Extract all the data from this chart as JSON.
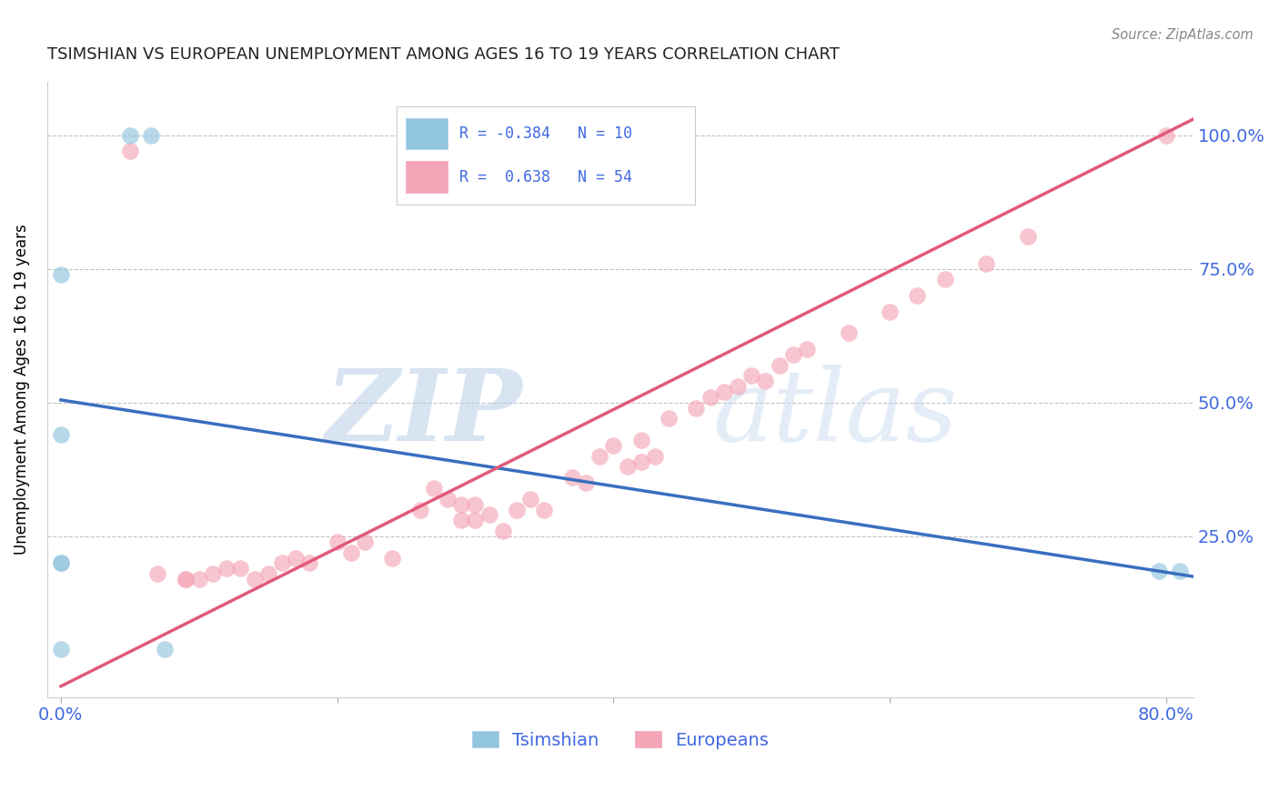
{
  "title": "TSIMSHIAN VS EUROPEAN UNEMPLOYMENT AMONG AGES 16 TO 19 YEARS CORRELATION CHART",
  "source": "Source: ZipAtlas.com",
  "xlabel_label": "Tsimshian",
  "ylabel": "Unemployment Among Ages 16 to 19 years",
  "xlim": [
    -0.01,
    0.82
  ],
  "ylim": [
    -0.05,
    1.1
  ],
  "xticks": [
    0.0,
    0.2,
    0.4,
    0.6,
    0.8
  ],
  "xticklabels": [
    "0.0%",
    "",
    "",
    "",
    "80.0%"
  ],
  "yticks": [
    0.0,
    0.25,
    0.5,
    0.75,
    1.0
  ],
  "yticklabels": [
    "",
    "25.0%",
    "50.0%",
    "75.0%",
    "100.0%"
  ],
  "grid_yticks": [
    0.25,
    0.5,
    0.75,
    1.0
  ],
  "blue_color": "#92C5DE",
  "pink_color": "#F4A6B8",
  "blue_line_color": "#3a6fbf",
  "pink_line_color": "#e05a7a",
  "legend_R_blue": "-0.384",
  "legend_N_blue": "10",
  "legend_R_pink": "0.638",
  "legend_N_pink": "54",
  "axis_label_color": "#4169E1",
  "title_color": "#222222",
  "watermark_zip": "ZIP",
  "watermark_atlas": "atlas",
  "tsimshian_x": [
    0.05,
    0.065,
    0.0,
    0.0,
    0.0,
    0.0,
    0.795,
    0.81,
    0.0,
    0.075
  ],
  "tsimshian_y": [
    1.0,
    1.0,
    0.74,
    0.44,
    0.2,
    0.2,
    0.185,
    0.185,
    0.04,
    0.04
  ],
  "european_x": [
    0.05,
    0.07,
    0.09,
    0.09,
    0.1,
    0.11,
    0.12,
    0.13,
    0.14,
    0.15,
    0.16,
    0.17,
    0.18,
    0.2,
    0.21,
    0.22,
    0.24,
    0.26,
    0.27,
    0.28,
    0.29,
    0.29,
    0.3,
    0.3,
    0.31,
    0.32,
    0.33,
    0.34,
    0.35,
    0.37,
    0.38,
    0.39,
    0.4,
    0.41,
    0.42,
    0.42,
    0.43,
    0.44,
    0.46,
    0.47,
    0.48,
    0.49,
    0.5,
    0.51,
    0.52,
    0.53,
    0.54,
    0.57,
    0.6,
    0.62,
    0.64,
    0.67,
    0.7,
    0.8
  ],
  "european_y": [
    0.97,
    0.18,
    0.17,
    0.17,
    0.17,
    0.18,
    0.19,
    0.19,
    0.17,
    0.18,
    0.2,
    0.21,
    0.2,
    0.24,
    0.22,
    0.24,
    0.21,
    0.3,
    0.34,
    0.32,
    0.31,
    0.28,
    0.31,
    0.28,
    0.29,
    0.26,
    0.3,
    0.32,
    0.3,
    0.36,
    0.35,
    0.4,
    0.42,
    0.38,
    0.39,
    0.43,
    0.4,
    0.47,
    0.49,
    0.51,
    0.52,
    0.53,
    0.55,
    0.54,
    0.57,
    0.59,
    0.6,
    0.63,
    0.67,
    0.7,
    0.73,
    0.76,
    0.81,
    1.0
  ],
  "blue_line_x0": 0.0,
  "blue_line_y0": 0.505,
  "blue_line_x1": 0.82,
  "blue_line_y1": 0.175,
  "pink_line_x0": 0.0,
  "pink_line_y0": -0.03,
  "pink_line_x1": 0.82,
  "pink_line_y1": 1.03
}
